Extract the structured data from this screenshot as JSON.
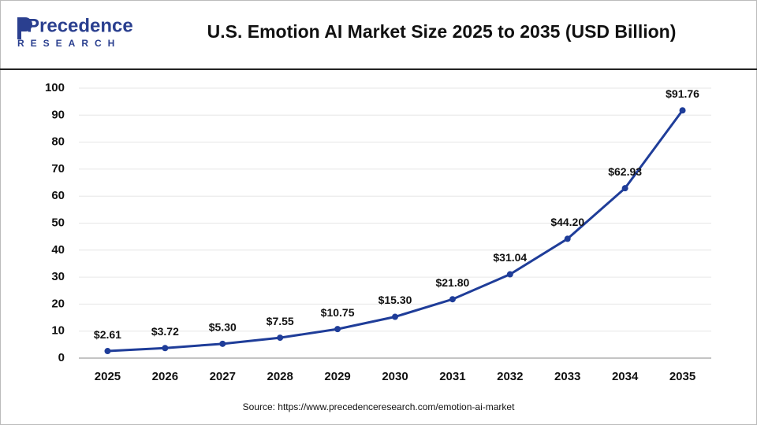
{
  "logo": {
    "name": "Precedence",
    "tagline": "RESEARCH"
  },
  "chart_data": {
    "type": "line",
    "title": "U.S. Emotion AI Market Size 2025 to 2035 (USD Billion)",
    "source": "Source: https://www.precedenceresearch.com/emotion-ai-market",
    "categories": [
      "2025",
      "2026",
      "2027",
      "2028",
      "2029",
      "2030",
      "2031",
      "2032",
      "2033",
      "2034",
      "2035"
    ],
    "values": [
      2.61,
      3.72,
      5.3,
      7.55,
      10.75,
      15.3,
      21.8,
      31.04,
      44.2,
      62.93,
      91.76
    ],
    "value_labels": [
      "$2.61",
      "$3.72",
      "$5.30",
      "$7.55",
      "$10.75",
      "$15.30",
      "$21.80",
      "$31.04",
      "$44.20",
      "$62.93",
      "$91.76"
    ],
    "color": "#1f3d99",
    "ylim": [
      0,
      100
    ],
    "yticks": [
      0,
      10,
      20,
      30,
      40,
      50,
      60,
      70,
      80,
      90,
      100
    ],
    "grid": true
  }
}
